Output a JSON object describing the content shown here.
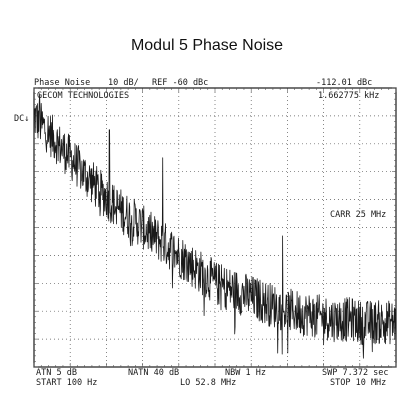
{
  "page_title": "Modul 5 Phase Noise",
  "header": {
    "mode": "Phase Noise",
    "scale": "10 dB/",
    "ref": "REF -60 dBc",
    "marker_level": "-112.01 dBc",
    "company": "GECOM TECHNOLOGIES",
    "marker_freq": "1.662775 kHz",
    "dc_marker": "DC↓"
  },
  "annotations": {
    "carrier": "CARR  25 MHz"
  },
  "footer": {
    "atn": "ATN  5 dB",
    "natn": "NATN 40 dB",
    "nbw": "NBW   1 Hz",
    "swp": "SWP  7.372 sec",
    "start": "START  100 Hz",
    "lo": "LO  52.8 MHz",
    "stop": "STOP  10 MHz"
  },
  "chart_data": {
    "type": "line",
    "x_scale": "log",
    "xlim_hz": [
      100,
      10000000
    ],
    "ylim_dbc": [
      -160,
      -60
    ],
    "y_divisions": 10,
    "x_divisions": 10,
    "grid": true,
    "grid_style": "dotted",
    "trace_color": "#1a1a1a",
    "series": [
      {
        "x_hz": [
          100,
          125,
          160,
          200,
          250,
          320,
          400,
          500,
          650,
          800,
          1000,
          1300,
          1600,
          2000,
          2600,
          3200,
          4000,
          5000,
          6500,
          8000,
          10000,
          13000,
          16000,
          20000,
          26000,
          32000,
          40000,
          50000,
          65000,
          80000,
          100000,
          130000,
          160000,
          200000,
          260000,
          320000,
          400000,
          500000,
          650000,
          800000,
          1000000,
          1300000,
          1600000,
          2000000,
          2600000,
          3200000,
          4000000,
          5000000,
          6500000,
          8000000,
          10000000
        ],
        "y_dbc": [
          -70,
          -73,
          -76,
          -79,
          -82,
          -85,
          -88,
          -91,
          -94,
          -97,
          -99,
          -102,
          -104,
          -106,
          -108,
          -110,
          -112,
          -114,
          -116,
          -118,
          -120,
          -122,
          -124,
          -126,
          -128,
          -130,
          -131,
          -132,
          -133,
          -134,
          -135,
          -136,
          -137,
          -138,
          -139,
          -140,
          -140,
          -141,
          -141,
          -142,
          -142,
          -143,
          -143,
          -143,
          -143,
          -144,
          -144,
          -144,
          -144,
          -144,
          -144
        ]
      }
    ],
    "spurs": [
      {
        "x_hz": 1100,
        "y_dbc": -75
      },
      {
        "x_hz": 6000,
        "y_dbc": -85
      },
      {
        "x_hz": 270000,
        "y_dbc": -113
      },
      {
        "x_hz": 120,
        "y_dbc": -62
      }
    ],
    "noise_spread_db": 8
  }
}
